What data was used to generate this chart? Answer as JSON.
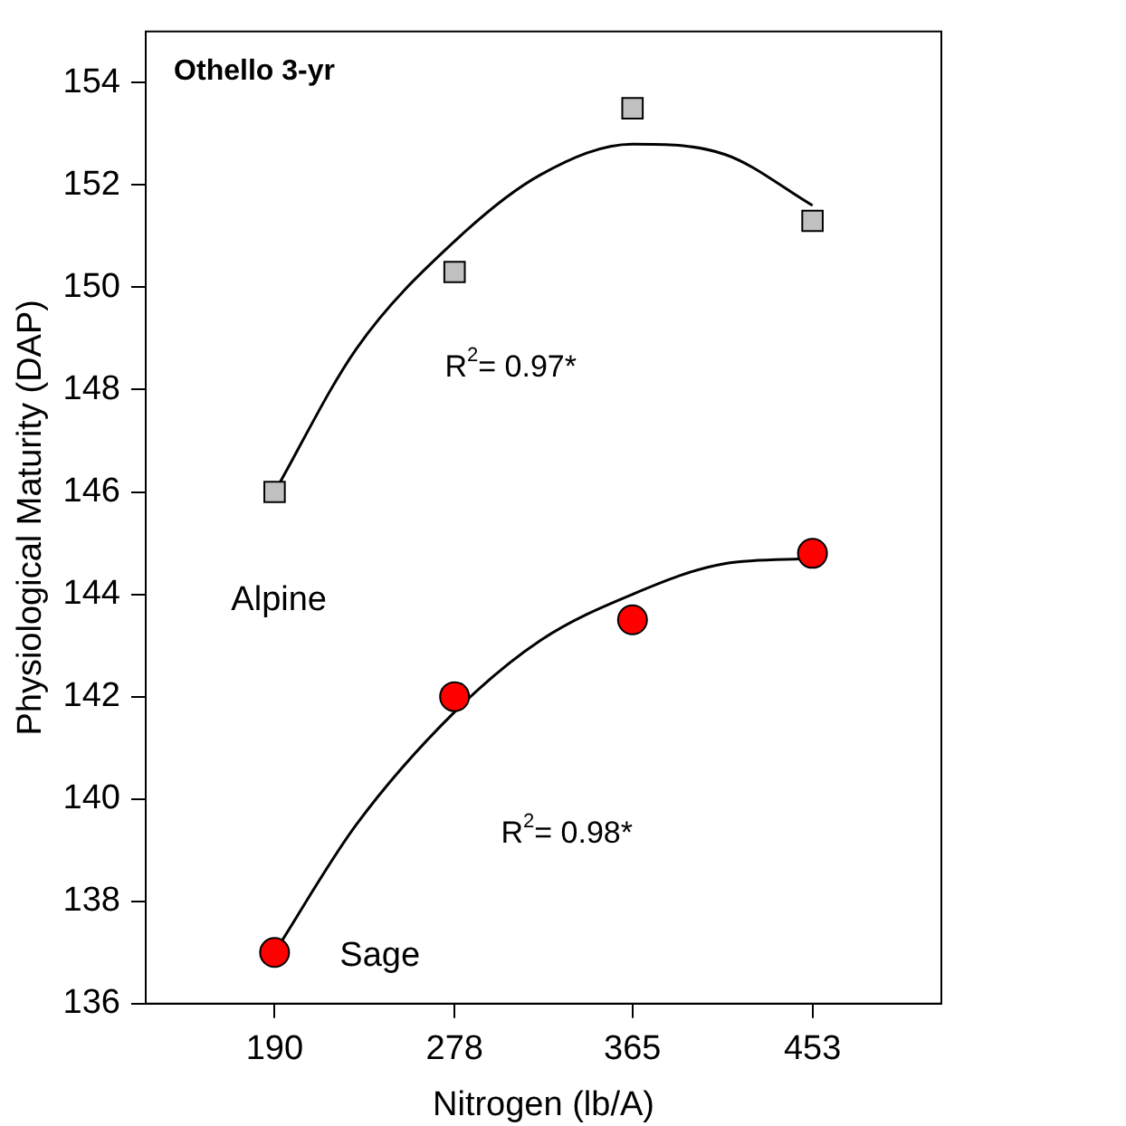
{
  "chart_data": {
    "type": "scatter",
    "xlabel": "Nitrogen (lb/A)",
    "ylabel": "Physiological Maturity (DAP)",
    "xlim": [
      127,
      516
    ],
    "xticks": [
      190,
      278,
      365,
      453
    ],
    "ylim": [
      136,
      155
    ],
    "yticks": [
      136,
      138,
      140,
      142,
      144,
      146,
      148,
      150,
      152,
      154
    ],
    "grid": false,
    "legend": false,
    "series": [
      {
        "name": "Alpine",
        "marker": "square",
        "color": "#c0c0c0",
        "x": [
          190,
          278,
          365,
          453
        ],
        "values": [
          146.0,
          150.3,
          153.5,
          151.3
        ]
      },
      {
        "name": "Sage",
        "marker": "circle",
        "color": "#ff0000",
        "x": [
          190,
          278,
          365,
          453
        ],
        "values": [
          137.0,
          142.0,
          143.5,
          144.8
        ]
      },
      {
        "type": "line",
        "marker": "none",
        "line_style": "solid",
        "color": "#000000",
        "x": [
          190,
          230,
          278,
          320,
          365,
          410,
          453
        ],
        "values": [
          146.0,
          148.8,
          150.9,
          152.2,
          152.8,
          152.6,
          151.6
        ]
      },
      {
        "type": "line",
        "marker": "none",
        "line_style": "solid",
        "color": "#000000",
        "x": [
          190,
          230,
          278,
          320,
          365,
          410,
          453
        ],
        "values": [
          137.0,
          139.5,
          141.7,
          143.1,
          144.0,
          144.6,
          144.7
        ]
      }
    ],
    "annotations": [
      "Othello 3-yr",
      "R$^{2}$= 0.97*",
      "R$^{2}$= 0.98*"
    ]
  }
}
